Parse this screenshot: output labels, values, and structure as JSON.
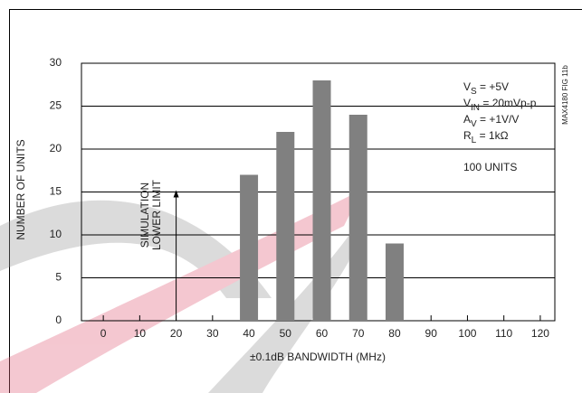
{
  "chart_data": {
    "type": "bar",
    "x": [
      40,
      50,
      60,
      70,
      80
    ],
    "values": [
      17,
      22,
      28,
      24,
      9
    ],
    "color": "#808080",
    "xlim": [
      -6,
      124
    ],
    "ylim": [
      0,
      30
    ],
    "xticks": [
      0,
      10,
      20,
      30,
      40,
      50,
      60,
      70,
      80,
      90,
      100,
      110,
      120
    ],
    "yticks": [
      0,
      5,
      10,
      15,
      20,
      25,
      30
    ],
    "grid": true,
    "xlabel": "±0.1dB BANDWIDTH (MHz)",
    "ylabel": "NUMBER OF UNITS",
    "conditions": [
      {
        "main": "V",
        "sub": "S",
        "rest": " = +5V"
      },
      {
        "main": "V",
        "sub": "IN",
        "rest": " = 20mVp-p"
      },
      {
        "main": "A",
        "sub": "V",
        "rest": " = +1V/V"
      },
      {
        "main": "R",
        "sub": "L",
        "rest": " = 1kΩ"
      }
    ],
    "note": "100 UNITS",
    "figure_id": "MAX4180 FIG 11b",
    "lower_limit": {
      "x": 20,
      "y": 15,
      "label": [
        "SIMULATION",
        "LOWER LIMIT"
      ]
    }
  }
}
